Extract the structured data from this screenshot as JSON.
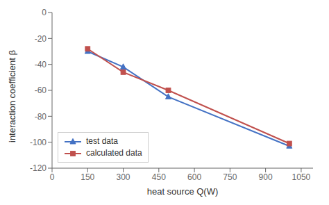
{
  "chart_data": {
    "type": "line",
    "x": [
      150,
      300,
      490,
      1000
    ],
    "series": [
      {
        "name": "test data",
        "color": "#4472C4",
        "marker": "triangle",
        "values": [
          -30,
          -42,
          -65,
          -103
        ]
      },
      {
        "name": "calculated data",
        "color": "#C0504D",
        "marker": "square",
        "values": [
          -28,
          -46,
          -60,
          -101
        ]
      }
    ],
    "xlabel": "heat source Q(W)",
    "ylabel": "interaction coefficient β",
    "xlim": [
      0,
      1100
    ],
    "ylim": [
      -120,
      0
    ],
    "xticks": [
      0,
      150,
      300,
      450,
      600,
      750,
      900,
      1050
    ],
    "yticks": [
      0,
      -20,
      -40,
      -60,
      -80,
      -100,
      -120
    ],
    "grid": false,
    "legend": "lower left"
  }
}
